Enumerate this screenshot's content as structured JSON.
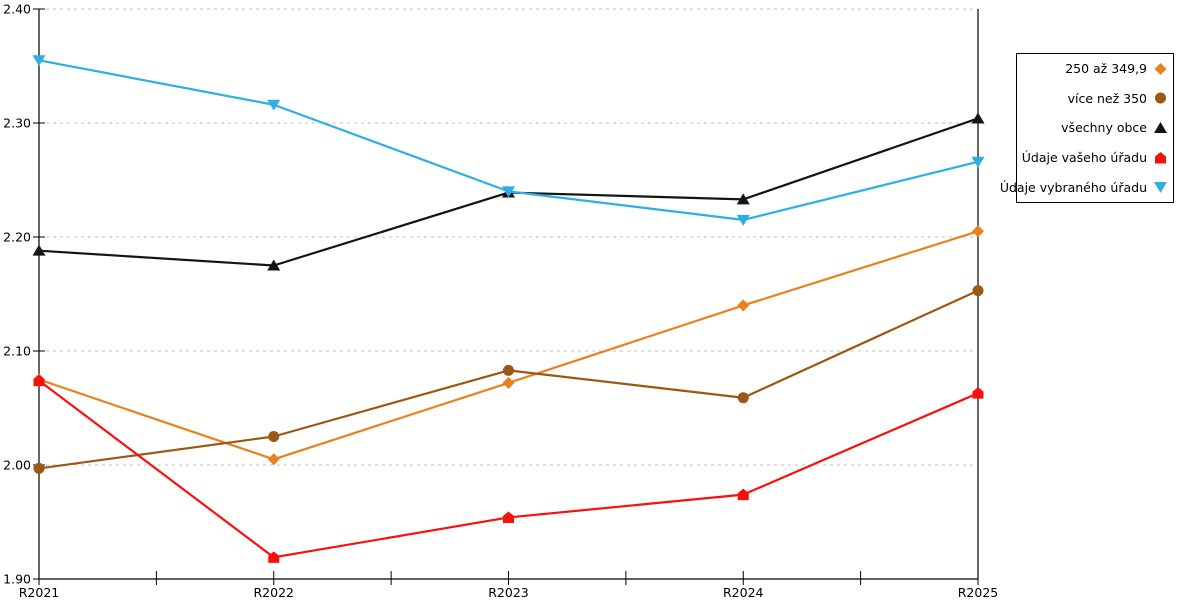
{
  "chart_data": {
    "type": "line",
    "categories": [
      "R2021",
      "R2022",
      "R2023",
      "R2024",
      "R2025"
    ],
    "series": [
      {
        "id": "250-az-349",
        "name": "250 až 349,9",
        "marker": "diamond",
        "color": "#E8821E",
        "values": [
          2.075,
          2.005,
          2.072,
          2.14,
          2.205
        ]
      },
      {
        "id": "vice-nez-350",
        "name": "více než 350",
        "marker": "circle",
        "color": "#9C5713",
        "values": [
          1.997,
          2.025,
          2.083,
          2.059,
          2.153
        ]
      },
      {
        "id": "vsechny-obce",
        "name": "všechny obce",
        "marker": "triangle-up",
        "color": "#141414",
        "values": [
          2.188,
          2.175,
          2.239,
          2.233,
          2.304
        ]
      },
      {
        "id": "udaje-vaseho-uradu",
        "name": "Údaje vašeho úřadu",
        "marker": "pentagon",
        "color": "#FB0F0C",
        "values": [
          2.074,
          1.919,
          1.954,
          1.974,
          2.063
        ]
      },
      {
        "id": "udaje-vybraneho-uradu",
        "name": "Údaje vybraného úřadu",
        "marker": "triangle-down",
        "color": "#2FAEE3",
        "values": [
          2.355,
          2.316,
          2.24,
          2.215,
          2.266
        ]
      }
    ],
    "ylim": [
      1.9,
      2.4
    ],
    "ytick_step": 0.1,
    "ytick_labels": [
      "1.90",
      "2.00",
      "2.10",
      "2.20",
      "2.30",
      "2.40"
    ],
    "xlabel": "",
    "ylabel": "",
    "title": "",
    "grid": "horizontal-dashed",
    "legend_position": "top-right"
  },
  "colors": {
    "background": "#FFFFFF",
    "axis": "#000000",
    "gridline": "#C0C0C0",
    "legend_border": "#000000",
    "text": "#000000"
  }
}
